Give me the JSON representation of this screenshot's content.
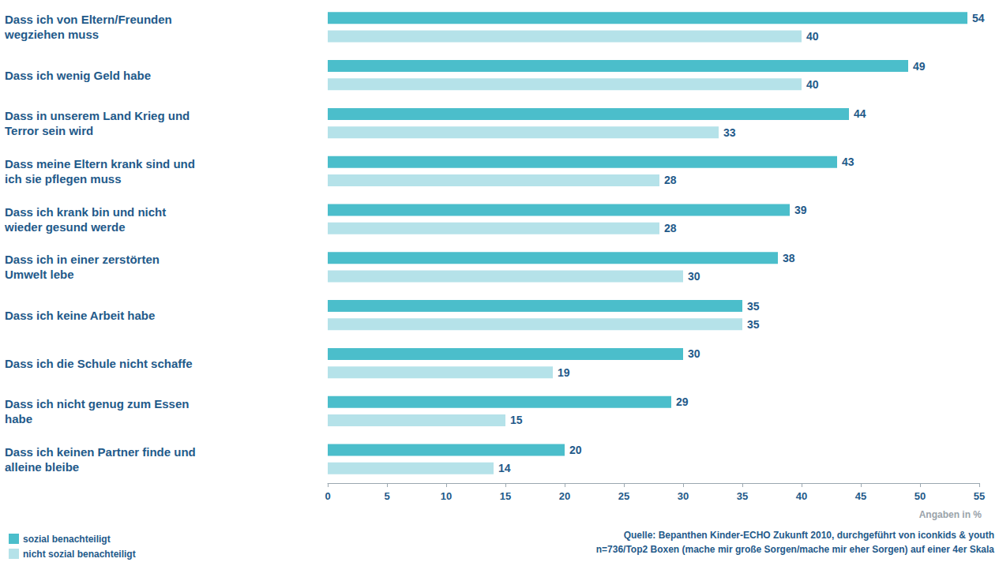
{
  "chart_data": {
    "type": "bar",
    "orientation": "horizontal",
    "categories": [
      "Dass ich von Eltern/Freunden wegziehen muss",
      "Dass ich wenig Geld habe",
      "Dass in unserem Land Krieg und Terror sein wird",
      "Dass meine Eltern krank sind und ich sie pflegen muss",
      "Dass ich krank bin und nicht wieder gesund werde",
      "Dass ich in einer zerstörten Umwelt lebe",
      "Dass ich keine Arbeit habe",
      "Dass ich die Schule nicht schaffe",
      "Dass ich nicht genug zum Essen habe",
      "Dass ich keinen Partner finde und alleine bleibe"
    ],
    "series": [
      {
        "name": "sozial benachteiligt",
        "color": "#4bbecb",
        "values": [
          54,
          49,
          44,
          43,
          39,
          38,
          35,
          30,
          29,
          20
        ]
      },
      {
        "name": "nicht sozial benachteiligt",
        "color": "#b5e2e9",
        "values": [
          40,
          40,
          33,
          28,
          28,
          30,
          35,
          19,
          15,
          14
        ]
      }
    ],
    "xlim": [
      0,
      55
    ],
    "xticks": [
      0,
      5,
      10,
      15,
      20,
      25,
      30,
      35,
      40,
      45,
      50,
      55
    ],
    "x_label": "Angaben in %",
    "annotations": [
      "Quelle: Bepanthen Kinder-ECHO Zukunft 2010, durchgeführt von iconkids & youth",
      "n=736/Top2 Boxen (mache mir große Sorgen/mache mir eher Sorgen) auf einer 4er Skala"
    ],
    "legend": "bottom-left",
    "data_labels": true,
    "grid": false
  }
}
